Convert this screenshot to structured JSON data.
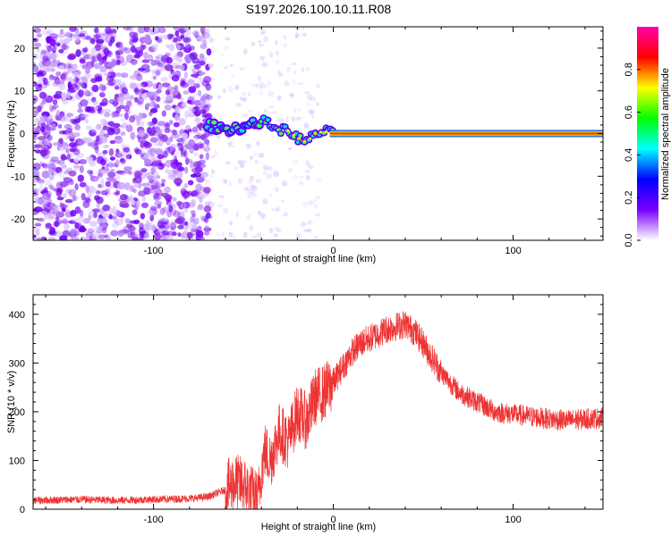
{
  "title": "S197.2026.100.10.11.R08",
  "chart_data": [
    {
      "type": "heatmap",
      "name": "spectrogram",
      "xlabel": "Height of straight line (km)",
      "ylabel": "Frequency (Hz)",
      "xlim": [
        -167,
        150
      ],
      "ylim": [
        -25,
        25
      ],
      "xticks": [
        -100,
        0,
        100
      ],
      "yticks": [
        -20,
        -10,
        0,
        10,
        20
      ],
      "xtick_labels": [
        "-100",
        "0",
        "100"
      ],
      "ytick_labels": [
        "-20",
        "-10",
        "0",
        "10",
        "20"
      ],
      "colorbar": {
        "label": "Normalized spectral amplitude",
        "range": [
          0,
          1
        ],
        "ticks": [
          0.0,
          0.2,
          0.4,
          0.6,
          0.8
        ],
        "tick_labels": [
          "0.0",
          "0.2",
          "0.4",
          "0.6",
          "0.8"
        ],
        "colors": [
          "#ffffff",
          "#7a00ff",
          "#0000ff",
          "#00ffff",
          "#00ff00",
          "#ffff00",
          "#ff0000",
          "#ff00aa"
        ]
      },
      "signal_line": {
        "x": [
          -70,
          -60,
          -50,
          -40,
          -35,
          -30,
          -25,
          -20,
          -15,
          -10,
          -5,
          0,
          50,
          100,
          150
        ],
        "y": [
          2,
          1,
          1.5,
          3,
          2,
          1,
          0.5,
          -1,
          -2,
          0,
          0.5,
          0,
          0,
          0,
          0
        ]
      },
      "noise_region_x": [
        -167,
        -68
      ]
    },
    {
      "type": "line",
      "name": "snr",
      "xlabel": "Height of straight line (km)",
      "ylabel": "SNR (10 * v/v)",
      "xlim": [
        -167,
        150
      ],
      "ylim": [
        0,
        440
      ],
      "xticks": [
        -100,
        0,
        100
      ],
      "yticks": [
        0,
        100,
        200,
        300,
        400
      ],
      "xtick_labels": [
        "-100",
        "0",
        "100"
      ],
      "ytick_labels": [
        "0",
        "100",
        "200",
        "300",
        "400"
      ],
      "color": "#ee3333",
      "series": [
        {
          "name": "SNR",
          "x": [
            -167,
            -140,
            -120,
            -100,
            -80,
            -70,
            -60,
            -55,
            -50,
            -45,
            -42,
            -40,
            -38,
            -35,
            -30,
            -25,
            -20,
            -15,
            -10,
            -5,
            0,
            5,
            10,
            15,
            20,
            25,
            30,
            35,
            40,
            45,
            50,
            55,
            60,
            70,
            80,
            90,
            100,
            110,
            120,
            130,
            140,
            150
          ],
          "y": [
            18,
            20,
            18,
            20,
            22,
            25,
            40,
            55,
            50,
            30,
            20,
            80,
            120,
            100,
            160,
            140,
            200,
            180,
            230,
            240,
            260,
            290,
            320,
            340,
            350,
            360,
            370,
            375,
            380,
            365,
            340,
            310,
            280,
            240,
            220,
            200,
            195,
            190,
            185,
            182,
            185,
            188
          ]
        }
      ]
    }
  ]
}
